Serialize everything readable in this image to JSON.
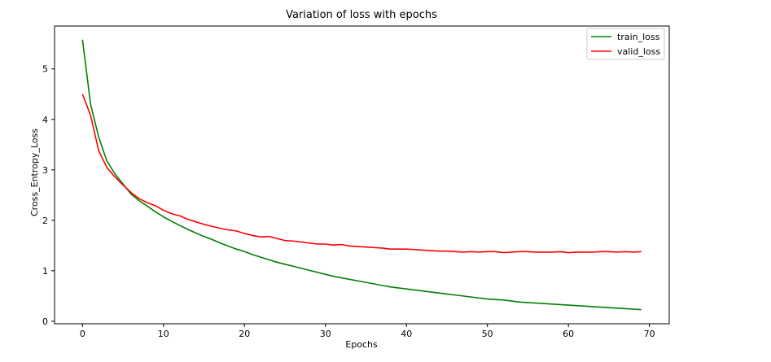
{
  "chart_data": {
    "type": "line",
    "title": "Variation of loss with epochs",
    "xlabel": "Epochs",
    "ylabel": "Cross_Entropy_Loss",
    "xlim": [
      -3.45,
      72.45
    ],
    "ylim": [
      -0.05,
      5.85
    ],
    "xticks": [
      0,
      10,
      20,
      30,
      40,
      50,
      60,
      70
    ],
    "yticks": [
      0,
      1,
      2,
      3,
      4,
      5
    ],
    "grid": false,
    "legend_position": "top-right",
    "x": [
      0,
      1,
      2,
      3,
      4,
      5,
      6,
      7,
      8,
      9,
      10,
      11,
      12,
      13,
      14,
      15,
      16,
      17,
      18,
      19,
      20,
      21,
      22,
      23,
      24,
      25,
      26,
      27,
      28,
      29,
      30,
      31,
      32,
      33,
      34,
      35,
      36,
      37,
      38,
      39,
      40,
      41,
      42,
      43,
      44,
      45,
      46,
      47,
      48,
      49,
      50,
      51,
      52,
      53,
      54,
      55,
      56,
      57,
      58,
      59,
      60,
      61,
      62,
      63,
      64,
      65,
      66,
      67,
      68,
      69
    ],
    "series": [
      {
        "name": "train_loss",
        "color": "#008000",
        "values": [
          5.58,
          4.3,
          3.65,
          3.18,
          2.92,
          2.72,
          2.52,
          2.39,
          2.28,
          2.17,
          2.07,
          1.98,
          1.9,
          1.82,
          1.75,
          1.68,
          1.62,
          1.55,
          1.49,
          1.43,
          1.38,
          1.32,
          1.27,
          1.22,
          1.17,
          1.13,
          1.09,
          1.05,
          1.01,
          0.97,
          0.93,
          0.89,
          0.86,
          0.83,
          0.8,
          0.77,
          0.74,
          0.71,
          0.68,
          0.66,
          0.64,
          0.62,
          0.6,
          0.58,
          0.56,
          0.54,
          0.52,
          0.5,
          0.48,
          0.46,
          0.44,
          0.43,
          0.42,
          0.4,
          0.38,
          0.37,
          0.36,
          0.35,
          0.34,
          0.33,
          0.32,
          0.31,
          0.3,
          0.29,
          0.28,
          0.27,
          0.26,
          0.25,
          0.24,
          0.23
        ]
      },
      {
        "name": "valid_loss",
        "color": "#ff0000",
        "values": [
          4.5,
          4.08,
          3.38,
          3.05,
          2.86,
          2.7,
          2.55,
          2.43,
          2.35,
          2.29,
          2.2,
          2.13,
          2.09,
          2.02,
          1.97,
          1.92,
          1.88,
          1.84,
          1.81,
          1.79,
          1.74,
          1.7,
          1.67,
          1.68,
          1.64,
          1.6,
          1.59,
          1.57,
          1.55,
          1.53,
          1.53,
          1.51,
          1.52,
          1.49,
          1.48,
          1.47,
          1.46,
          1.45,
          1.43,
          1.43,
          1.43,
          1.42,
          1.41,
          1.4,
          1.39,
          1.39,
          1.38,
          1.37,
          1.38,
          1.37,
          1.38,
          1.38,
          1.36,
          1.37,
          1.38,
          1.38,
          1.37,
          1.37,
          1.37,
          1.38,
          1.36,
          1.37,
          1.37,
          1.37,
          1.38,
          1.38,
          1.37,
          1.38,
          1.37,
          1.38
        ]
      }
    ]
  }
}
